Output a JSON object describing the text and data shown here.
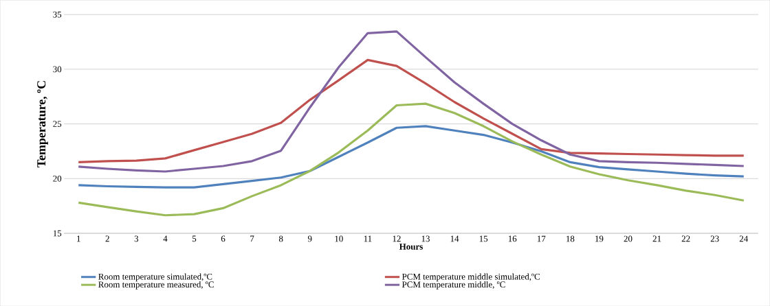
{
  "chart_data": {
    "type": "line",
    "xlabel": "Hours",
    "ylabel": "Temperature, ºC",
    "categories": [
      "1",
      "2",
      "3",
      "4",
      "5",
      "6",
      "7",
      "8",
      "9",
      "10",
      "11",
      "12",
      "13",
      "14",
      "15",
      "16",
      "17",
      "18",
      "19",
      "20",
      "21",
      "22",
      "23",
      "24"
    ],
    "ylim": [
      15,
      35
    ],
    "yticks": [
      15,
      20,
      25,
      30,
      35
    ],
    "grid": "y",
    "legend": "bottom",
    "marker": "none",
    "line_style": "solid",
    "series": [
      {
        "name": "Room temperature simulated,ºC",
        "color": "#4f81bd",
        "values": [
          19.4,
          19.3,
          19.25,
          19.2,
          19.2,
          19.5,
          19.8,
          20.1,
          20.7,
          22.0,
          23.3,
          24.65,
          24.8,
          24.4,
          24.0,
          23.3,
          22.5,
          21.5,
          21.05,
          20.85,
          20.65,
          20.45,
          20.3,
          20.2
        ]
      },
      {
        "name": "PCM temperature middle simulated,ºC",
        "color": "#c0504d",
        "values": [
          21.5,
          21.6,
          21.65,
          21.85,
          22.6,
          23.35,
          24.1,
          25.1,
          27.2,
          29.0,
          30.85,
          30.3,
          28.7,
          27.0,
          25.5,
          24.1,
          22.7,
          22.35,
          22.3,
          22.25,
          22.2,
          22.15,
          22.1,
          22.1
        ]
      },
      {
        "name": "Room temperature measured, ºC",
        "color": "#9bbb59",
        "values": [
          17.8,
          17.4,
          17.0,
          16.65,
          16.75,
          17.3,
          18.4,
          19.4,
          20.7,
          22.4,
          24.4,
          26.7,
          26.85,
          26.0,
          24.8,
          23.4,
          22.2,
          21.1,
          20.4,
          19.85,
          19.4,
          18.9,
          18.5,
          18.0
        ]
      },
      {
        "name": "PCM temperature middle, ºC",
        "color": "#8064a2",
        "values": [
          21.1,
          20.9,
          20.75,
          20.65,
          20.9,
          21.15,
          21.6,
          22.55,
          26.5,
          30.2,
          33.3,
          33.45,
          31.1,
          28.8,
          26.85,
          25.0,
          23.5,
          22.2,
          21.6,
          21.5,
          21.45,
          21.35,
          21.25,
          21.15
        ]
      }
    ]
  }
}
